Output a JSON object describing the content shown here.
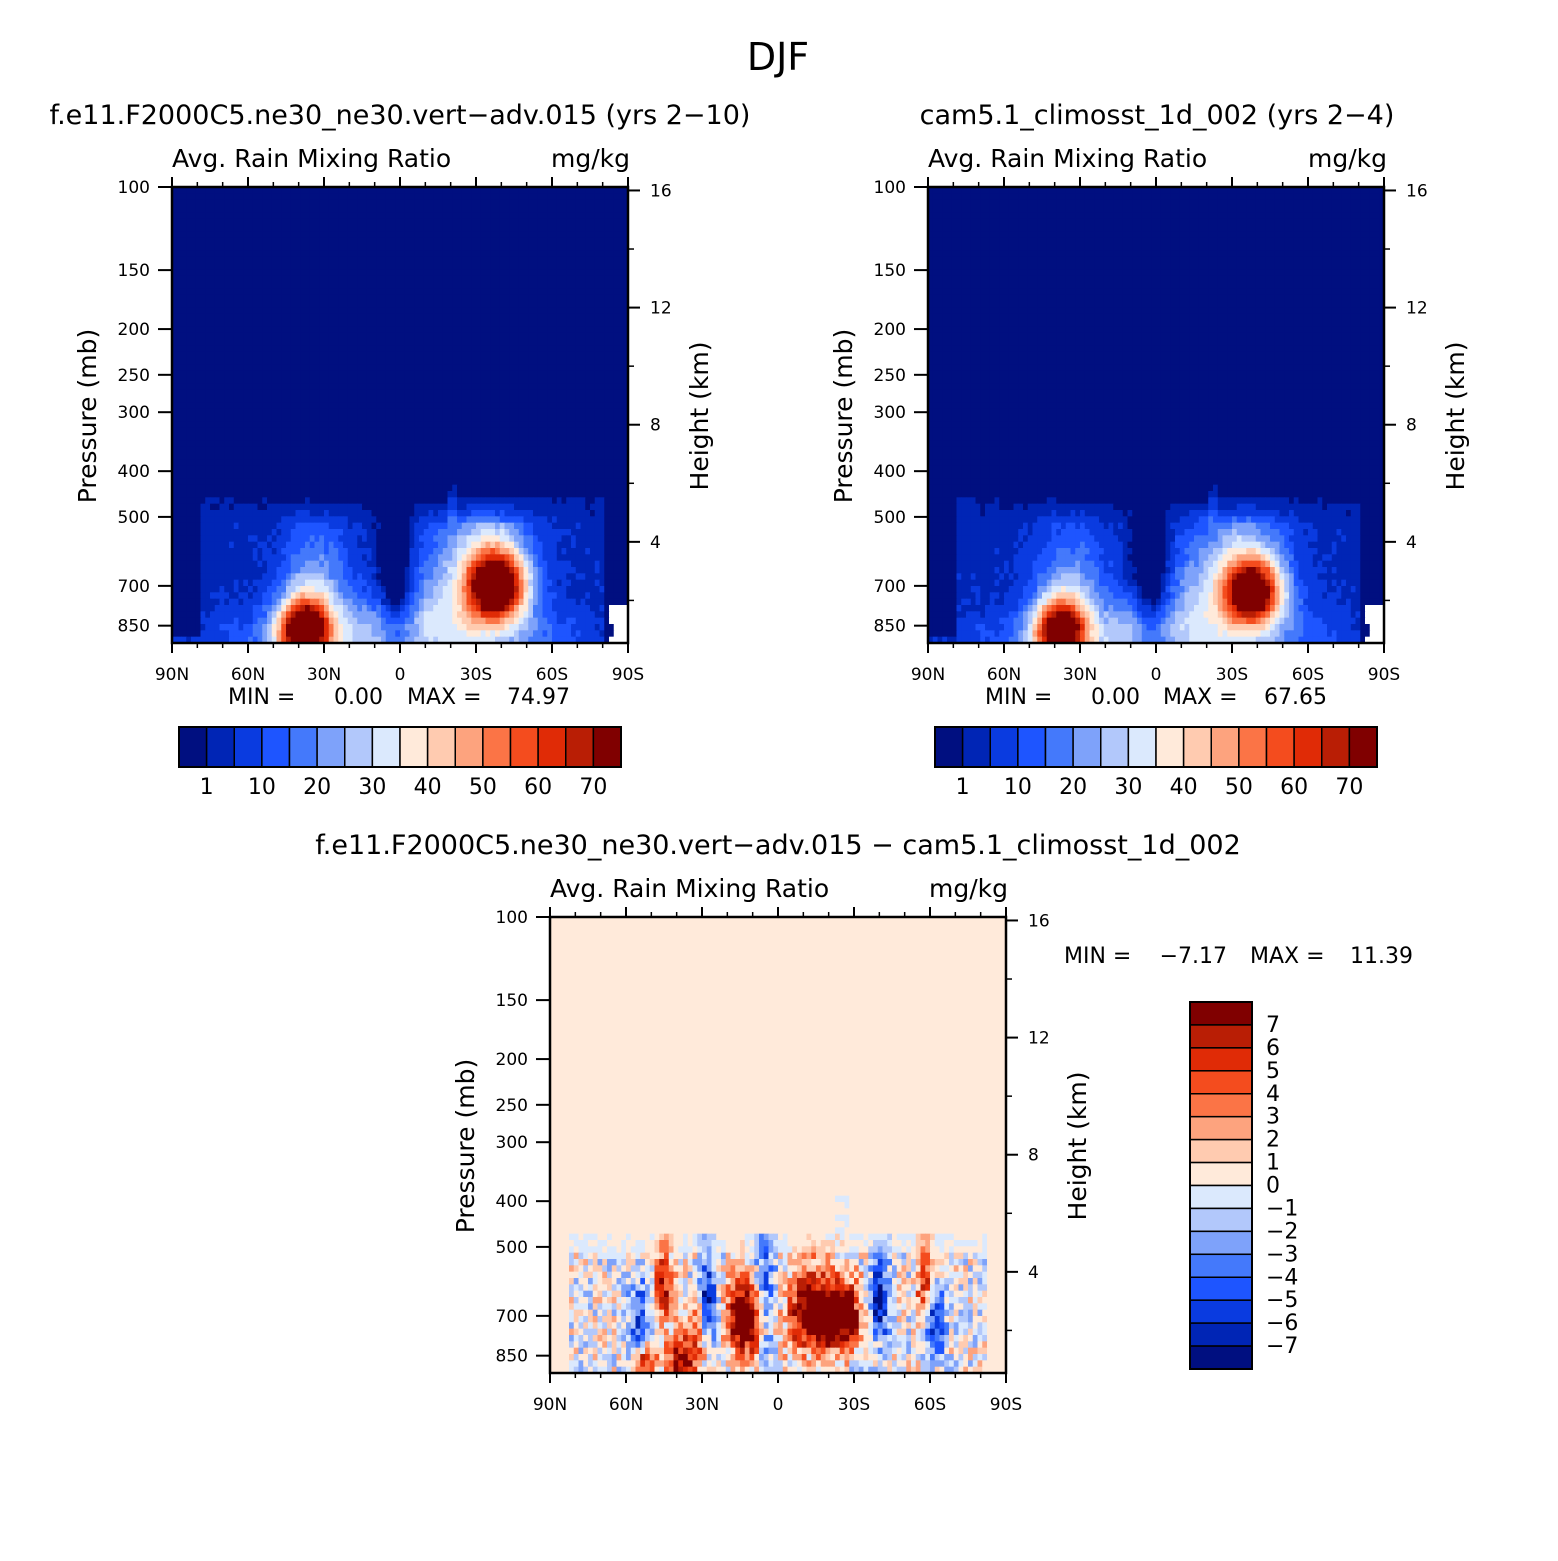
{
  "figure_title": "DJF",
  "chart_data": [
    {
      "type": "heatmap",
      "title": "f.e11.F2000C5.ne30_ne30.vert-adv.015 (yrs 2-10)",
      "variable": "Avg. Rain Mixing Ratio",
      "units": "mg/kg",
      "ylabel": "Pressure (mb)",
      "ylabel2": "Height (km)",
      "x_ticks": [
        "90N",
        "60N",
        "30N",
        "0",
        "30S",
        "60S",
        "90S"
      ],
      "y_ticks": [
        100,
        150,
        200,
        250,
        300,
        400,
        500,
        700,
        850
      ],
      "y2_ticks": [
        16,
        12,
        8,
        4
      ],
      "min_label": "MIN =",
      "min": "0.00",
      "max_label": "MAX =",
      "max": "74.97",
      "colorbar_labels": [
        "1",
        "10",
        "20",
        "30",
        "40",
        "50",
        "60",
        "70"
      ],
      "features": [
        {
          "lat": 38,
          "p": 870,
          "peak": 72,
          "desc": "northern subtropical low-level maximum"
        },
        {
          "lat": -38,
          "p": 710,
          "peak": 74.97,
          "desc": "southern subtropical maximum"
        }
      ],
      "colors": [
        "#000f80",
        "#0025b5",
        "#0a3be0",
        "#1e55ff",
        "#4479fb",
        "#7ea2fa",
        "#b2c8fb",
        "#dbe9fd",
        "#ffeada",
        "#ffcbb0",
        "#fda37e",
        "#fb7446",
        "#f44c1e",
        "#e02b06",
        "#b91e05",
        "#800000"
      ]
    },
    {
      "type": "heatmap",
      "title": "cam5.1_climosst_1d_002 (yrs 2-4)",
      "variable": "Avg. Rain Mixing Ratio",
      "units": "mg/kg",
      "ylabel": "Pressure (mb)",
      "ylabel2": "Height (km)",
      "x_ticks": [
        "90N",
        "60N",
        "30N",
        "0",
        "30S",
        "60S",
        "90S"
      ],
      "y_ticks": [
        100,
        150,
        200,
        250,
        300,
        400,
        500,
        700,
        850
      ],
      "y2_ticks": [
        16,
        12,
        8,
        4
      ],
      "min_label": "MIN =",
      "min": "0.00",
      "max_label": "MAX =",
      "max": "67.65",
      "colorbar_labels": [
        "1",
        "10",
        "20",
        "30",
        "40",
        "50",
        "60",
        "70"
      ],
      "features": [
        {
          "lat": 38,
          "p": 860,
          "peak": 65,
          "desc": "northern subtropical low-level maximum"
        },
        {
          "lat": -38,
          "p": 720,
          "peak": 67.65,
          "desc": "southern subtropical maximum"
        }
      ],
      "colors": [
        "#000f80",
        "#0025b5",
        "#0a3be0",
        "#1e55ff",
        "#4479fb",
        "#7ea2fa",
        "#b2c8fb",
        "#dbe9fd",
        "#ffeada",
        "#ffcbb0",
        "#fda37e",
        "#fb7446",
        "#f44c1e",
        "#e02b06",
        "#b91e05",
        "#800000"
      ]
    },
    {
      "type": "heatmap",
      "title": "f.e11.F2000C5.ne30_ne30.vert-adv.015 - cam5.1_climosst_1d_002",
      "variable": "Avg. Rain Mixing Ratio",
      "units": "mg/kg",
      "ylabel": "Pressure (mb)",
      "ylabel2": "Height (km)",
      "x_ticks": [
        "90N",
        "60N",
        "30N",
        "0",
        "30S",
        "60S",
        "90S"
      ],
      "y_ticks": [
        100,
        150,
        200,
        250,
        300,
        400,
        500,
        700,
        850
      ],
      "y2_ticks": [
        16,
        12,
        8,
        4
      ],
      "min_label": "MIN =",
      "min": "-7.17",
      "max_label": "MAX =",
      "max": "11.39",
      "colorbar_labels": [
        "7",
        "6",
        "5",
        "4",
        "3",
        "2",
        "1",
        "0",
        "-1",
        "-2",
        "-3",
        "-4",
        "-5",
        "-6",
        "-7"
      ],
      "background_value": 0.5,
      "colors": [
        "#800000",
        "#b91e05",
        "#e02b06",
        "#f44c1e",
        "#fb7446",
        "#fda37e",
        "#ffcbb0",
        "#ffeada",
        "#dbe9fd",
        "#b2c8fb",
        "#7ea2fa",
        "#4479fb",
        "#1e55ff",
        "#0a3be0",
        "#0025b5",
        "#000f80"
      ]
    }
  ]
}
